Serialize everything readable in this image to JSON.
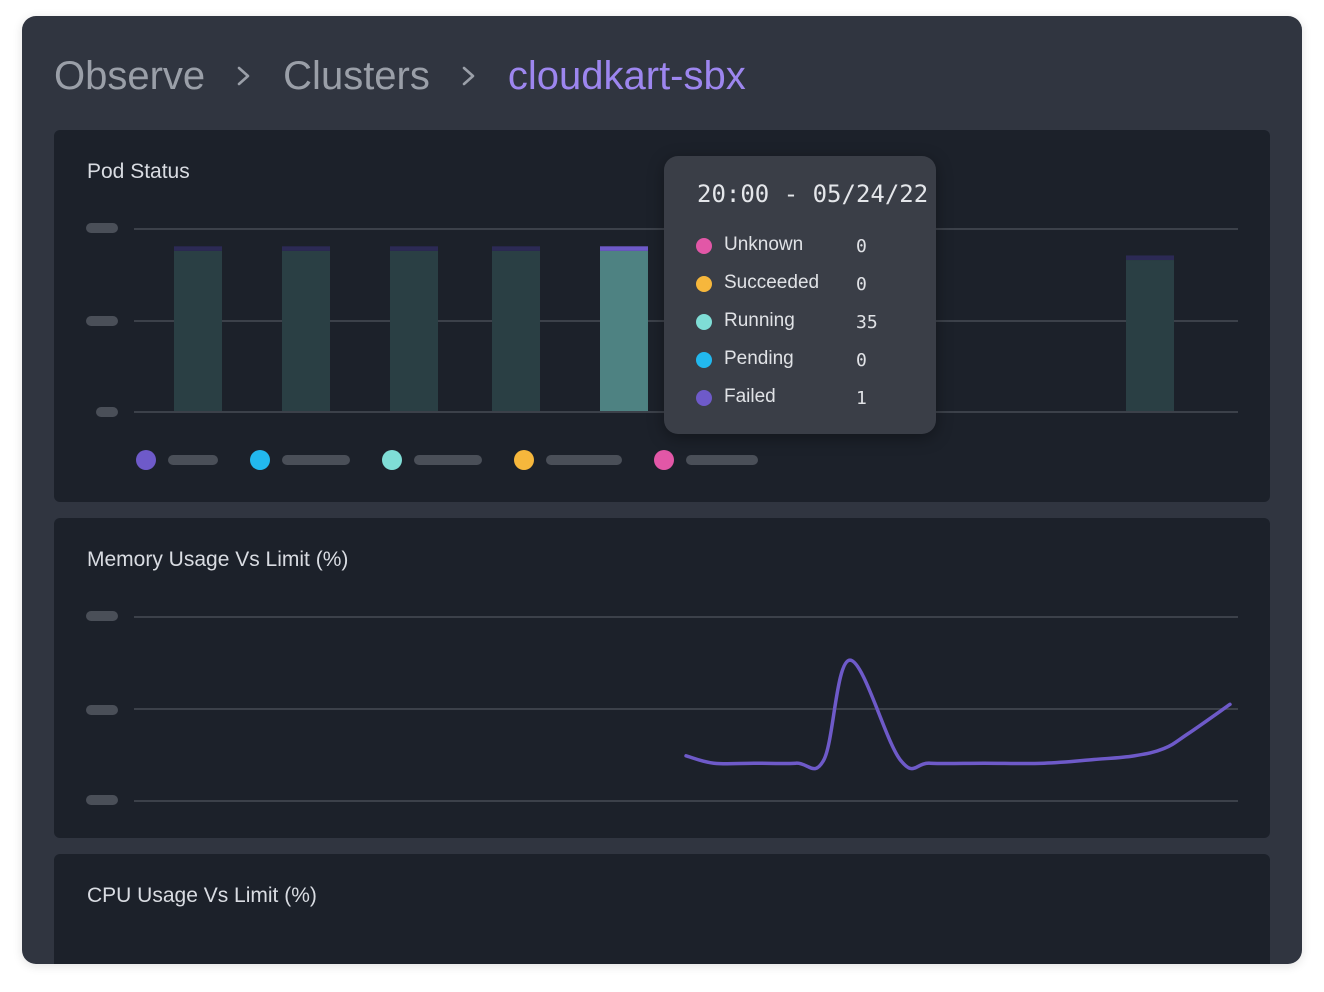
{
  "breadcrumb": {
    "items": [
      {
        "label": "Observe"
      },
      {
        "label": "Clusters"
      },
      {
        "label": "cloudkart-sbx"
      }
    ],
    "current_color": "#9d86ef"
  },
  "pod_status": {
    "title": "Pod Status",
    "tooltip": {
      "title": "20:00 - 05/24/22",
      "rows": [
        {
          "label": "Unknown",
          "value": "0",
          "color": "#e257a7"
        },
        {
          "label": "Succeeded",
          "value": "0",
          "color": "#f6b73c"
        },
        {
          "label": "Running",
          "value": "35",
          "color": "#7fddd6"
        },
        {
          "label": "Pending",
          "value": "0",
          "color": "#22b8ee"
        },
        {
          "label": "Failed",
          "value": "1",
          "color": "#6e5ac9"
        }
      ]
    },
    "legend_colors": [
      "#6e5ac9",
      "#22b8ee",
      "#7fddd6",
      "#f6b73c",
      "#e257a7"
    ]
  },
  "memory": {
    "title": "Memory Usage Vs Limit (%)",
    "line_color": "#6e5ac9"
  },
  "cpu": {
    "title": "CPU Usage Vs Limit (%)"
  },
  "chart_data": [
    {
      "type": "bar",
      "stacked": true,
      "series_colors": {
        "running": "#2a3f44",
        "running_highlight": "#4e8282",
        "failed": "#2c2a55",
        "failed_highlight": "#6e5ac9"
      },
      "bars": [
        {
          "running": 35,
          "failed": 1
        },
        {
          "running": 35,
          "failed": 1
        },
        {
          "running": 35,
          "failed": 1
        },
        {
          "running": 35,
          "failed": 1
        },
        {
          "running": 35,
          "failed": 1,
          "highlighted": true
        },
        {
          "running": 33,
          "failed": 1
        }
      ],
      "ylim": [
        0,
        40
      ],
      "grid": true,
      "legend": "bottom-left"
    },
    {
      "type": "line",
      "y": [
        2,
        0,
        0,
        0,
        1,
        28,
        1,
        0,
        0,
        0,
        1,
        2,
        4,
        8,
        16
      ],
      "ylim": [
        -10,
        40
      ],
      "grid": true
    }
  ]
}
